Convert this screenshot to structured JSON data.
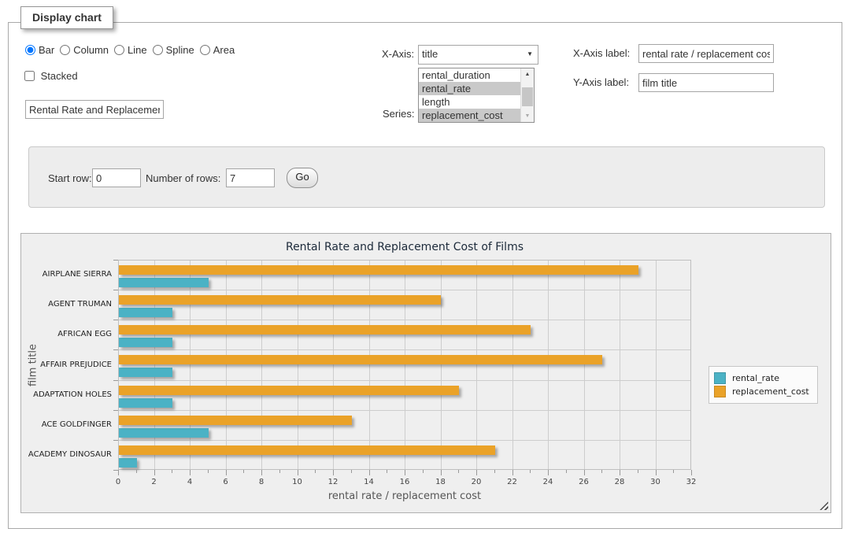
{
  "window": {
    "legend": "Display chart"
  },
  "chart_type": {
    "options": [
      "Bar",
      "Column",
      "Line",
      "Spline",
      "Area"
    ],
    "selected": "Bar"
  },
  "stacked": {
    "label": "Stacked",
    "checked": false
  },
  "title_input": {
    "value": "Rental Rate and Replacement Cost of Films"
  },
  "x_axis": {
    "label": "X-Axis:",
    "selected": "title"
  },
  "series_select": {
    "label": "Series:",
    "options": [
      {
        "label": "rental_duration",
        "selected": false
      },
      {
        "label": "rental_rate",
        "selected": true
      },
      {
        "label": "length",
        "selected": false
      },
      {
        "label": "replacement_cost",
        "selected": true
      }
    ]
  },
  "x_axis_label": {
    "label": "X-Axis label:",
    "value": "rental rate / replacement cost"
  },
  "y_axis_label": {
    "label": "Y-Axis label:",
    "value": "film title"
  },
  "rows_panel": {
    "start_row_label": "Start row:",
    "start_row_value": "0",
    "num_rows_label": "Number of rows:",
    "num_rows_value": "7",
    "go_label": "Go"
  },
  "icons": {
    "select_arrow": "▼",
    "scroll_up_arrow": "▲",
    "scroll_down_arrow": "▼"
  },
  "colors": {
    "rental_rate": "#4bb2c5",
    "replacement_cost": "#eaa228",
    "gridline": "#cdcdcd",
    "chart_bg": "#efefef"
  },
  "chart_data": {
    "type": "bar",
    "orientation": "horizontal",
    "title": "Rental Rate and Replacement Cost of Films",
    "categories": [
      "AIRPLANE SIERRA",
      "AGENT TRUMAN",
      "AFRICAN EGG",
      "AFFAIR PREJUDICE",
      "ADAPTATION HOLES",
      "ACE GOLDFINGER",
      "ACADEMY DINOSAUR"
    ],
    "series": [
      {
        "name": "rental_rate",
        "color": "#4bb2c5",
        "values": [
          4.99,
          2.99,
          2.99,
          2.99,
          2.99,
          4.99,
          0.99
        ]
      },
      {
        "name": "replacement_cost",
        "color": "#eaa228",
        "values": [
          28.99,
          17.99,
          22.99,
          26.99,
          18.99,
          12.99,
          20.99
        ]
      }
    ],
    "xlabel": "rental rate / replacement cost",
    "ylabel": "film title",
    "xlim": [
      0,
      32
    ],
    "x_tick_step": 2,
    "x_minor_tick_step": 1,
    "grid": true,
    "legend_position": "right"
  }
}
